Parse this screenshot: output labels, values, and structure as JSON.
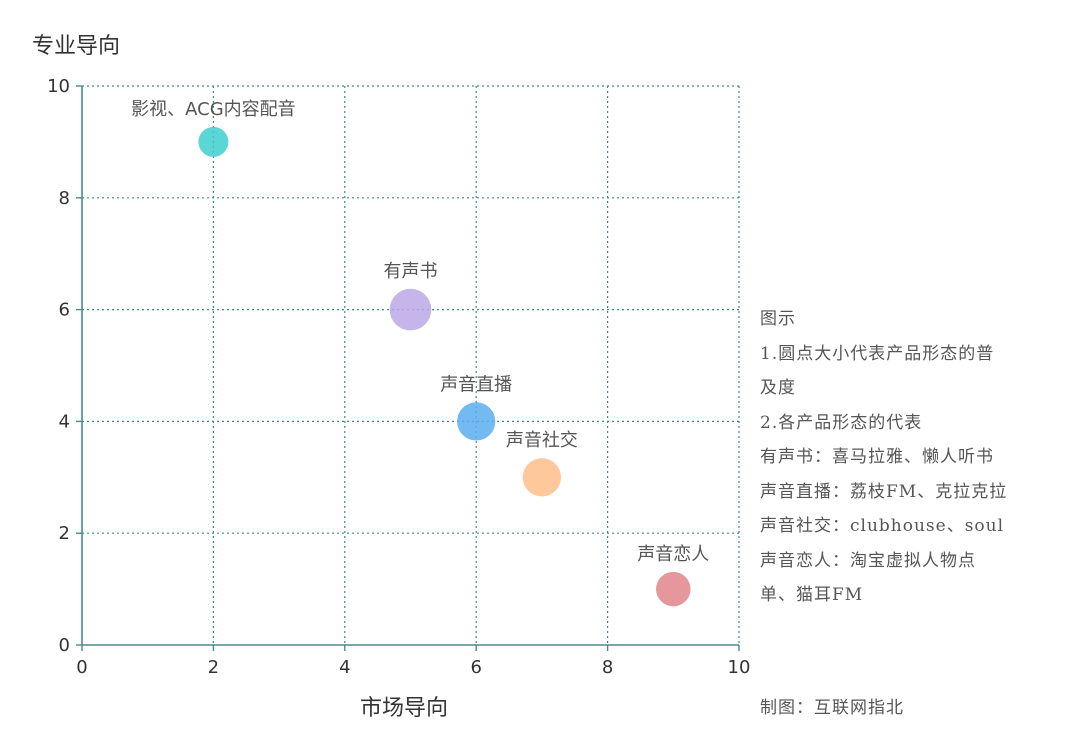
{
  "chart_data": {
    "type": "scatter",
    "title": "",
    "xlabel": "市场导向",
    "ylabel": "专业导向",
    "xlim": [
      0,
      10
    ],
    "ylim": [
      0,
      10
    ],
    "x_ticks": [
      "0",
      "2",
      "4",
      "6",
      "8",
      "10"
    ],
    "y_ticks": [
      "0",
      "2",
      "4",
      "6",
      "8",
      "10"
    ],
    "grid": true,
    "points": [
      {
        "label": "影视、ACG内容配音",
        "x": 2,
        "y": 9,
        "size": 1,
        "color": "#3ecfcf"
      },
      {
        "label": "有声书",
        "x": 5,
        "y": 6,
        "size": 2.5,
        "color": "#bba8e6"
      },
      {
        "label": "声音直播",
        "x": 6,
        "y": 4,
        "size": 2,
        "color": "#5aaef0"
      },
      {
        "label": "声音社交",
        "x": 7,
        "y": 3,
        "size": 2,
        "color": "#ffbe8a"
      },
      {
        "label": "声音恋人",
        "x": 9,
        "y": 1,
        "size": 1.5,
        "color": "#e0858a"
      }
    ]
  },
  "legend": {
    "title": "图示",
    "lines": [
      "1.圆点大小代表产品形态的普",
      "及度",
      "2.各产品形态的代表",
      "有声书：喜马拉雅、懒人听书",
      "声音直播：荔枝FM、克拉克拉",
      "声音社交：clubhouse、soul",
      "声音恋人：淘宝虚拟人物点",
      "单、猫耳FM"
    ]
  },
  "credit": "制图：互联网指北",
  "colors": {
    "axis": "#4a8a8f",
    "grid": "#3e8a86",
    "text": "#333333"
  }
}
